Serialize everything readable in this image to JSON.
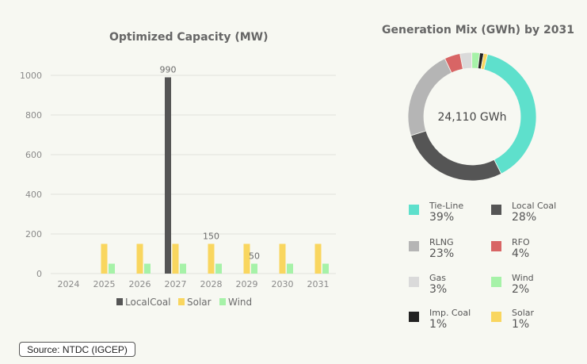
{
  "colors": {
    "LocalCoal": "#555555",
    "Solar": "#f9d65f",
    "Wind": "#a6f2a8",
    "Tie-Line": "#5ee0cc",
    "Local Coal": "#555555",
    "RLNG": "#b5b5b5",
    "RFO": "#d86565",
    "Gas": "#dadada",
    "Imp. Coal": "#222222"
  },
  "chart_data": [
    {
      "type": "bar",
      "title": "Optimized Capacity (MW)",
      "categories": [
        "2024",
        "2025",
        "2026",
        "2027",
        "2028",
        "2029",
        "2030",
        "2031"
      ],
      "series": [
        {
          "name": "LocalCoal",
          "values": [
            0,
            0,
            0,
            990,
            0,
            0,
            0,
            0
          ]
        },
        {
          "name": "Solar",
          "values": [
            0,
            150,
            150,
            150,
            150,
            150,
            150,
            150
          ]
        },
        {
          "name": "Wind",
          "values": [
            0,
            50,
            50,
            50,
            50,
            50,
            50,
            50
          ]
        }
      ],
      "yticks": [
        "0",
        "200",
        "400",
        "600",
        "800",
        "1000"
      ],
      "ylim": [
        0,
        1000
      ],
      "data_labels": [
        {
          "series": "LocalCoal",
          "category": "2027",
          "text": "990"
        },
        {
          "series": "Solar",
          "category": "2028",
          "text": "150"
        },
        {
          "series": "Wind",
          "category": "2029",
          "text": "50"
        }
      ],
      "legend_position": "bottom",
      "grid": true
    },
    {
      "type": "pie",
      "title": "Generation Mix (GWh) by 2031",
      "center_label": "24,110 GWh",
      "slices": [
        {
          "name": "Tie-Line",
          "value": 39,
          "label": "39%"
        },
        {
          "name": "Local Coal",
          "value": 28,
          "label": "28%"
        },
        {
          "name": "RLNG",
          "value": 23,
          "label": "23%"
        },
        {
          "name": "RFO",
          "value": 4,
          "label": "4%"
        },
        {
          "name": "Gas",
          "value": 3,
          "label": "3%"
        },
        {
          "name": "Wind",
          "value": 2,
          "label": "2%"
        },
        {
          "name": "Imp. Coal",
          "value": 1,
          "label": "1%"
        },
        {
          "name": "Solar",
          "value": 1,
          "label": "1%"
        }
      ],
      "legend_position": "bottom"
    }
  ],
  "source": "Source: NTDC (IGCEP)"
}
